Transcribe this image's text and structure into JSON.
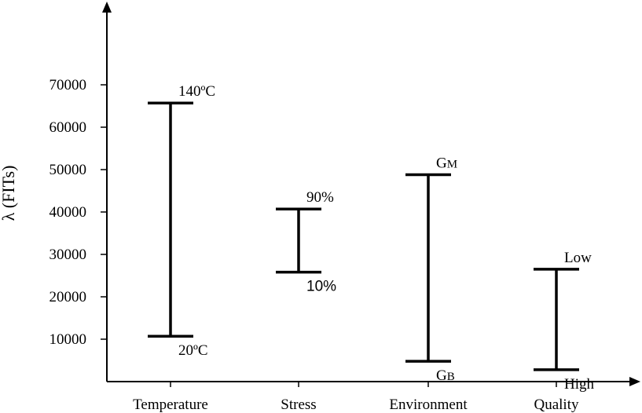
{
  "chart_data": {
    "type": "range-bar",
    "ylabel": "λ (FITs)",
    "yticks": [
      10000,
      20000,
      30000,
      40000,
      50000,
      60000,
      70000
    ],
    "ytick_labels": [
      "10000",
      "20000",
      "30000",
      "40000",
      "50000",
      "60000",
      "70000"
    ],
    "categories": [
      "Temperature",
      "Stress",
      "Environment",
      "Quality"
    ],
    "ranges": [
      {
        "category": "Temperature",
        "low": 10700,
        "high": 65700,
        "high_label": {
          "main": "140ºC",
          "sub": ""
        },
        "low_label": {
          "main": "20ºC",
          "sub": ""
        }
      },
      {
        "category": "Stress",
        "low": 25800,
        "high": 40700,
        "high_label": {
          "main": "90%",
          "sub": ""
        },
        "low_label": {
          "main": "10%",
          "sub": ""
        }
      },
      {
        "category": "Environment",
        "low": 4800,
        "high": 48800,
        "high_label": {
          "main": "G",
          "sub": "M"
        },
        "low_label": {
          "main": "G",
          "sub": "B"
        }
      },
      {
        "category": "Quality",
        "low": 2800,
        "high": 26500,
        "high_label": {
          "main": "Low",
          "sub": ""
        },
        "low_label": {
          "main": "High",
          "sub": ""
        }
      }
    ],
    "grid": false,
    "legend": "none"
  }
}
